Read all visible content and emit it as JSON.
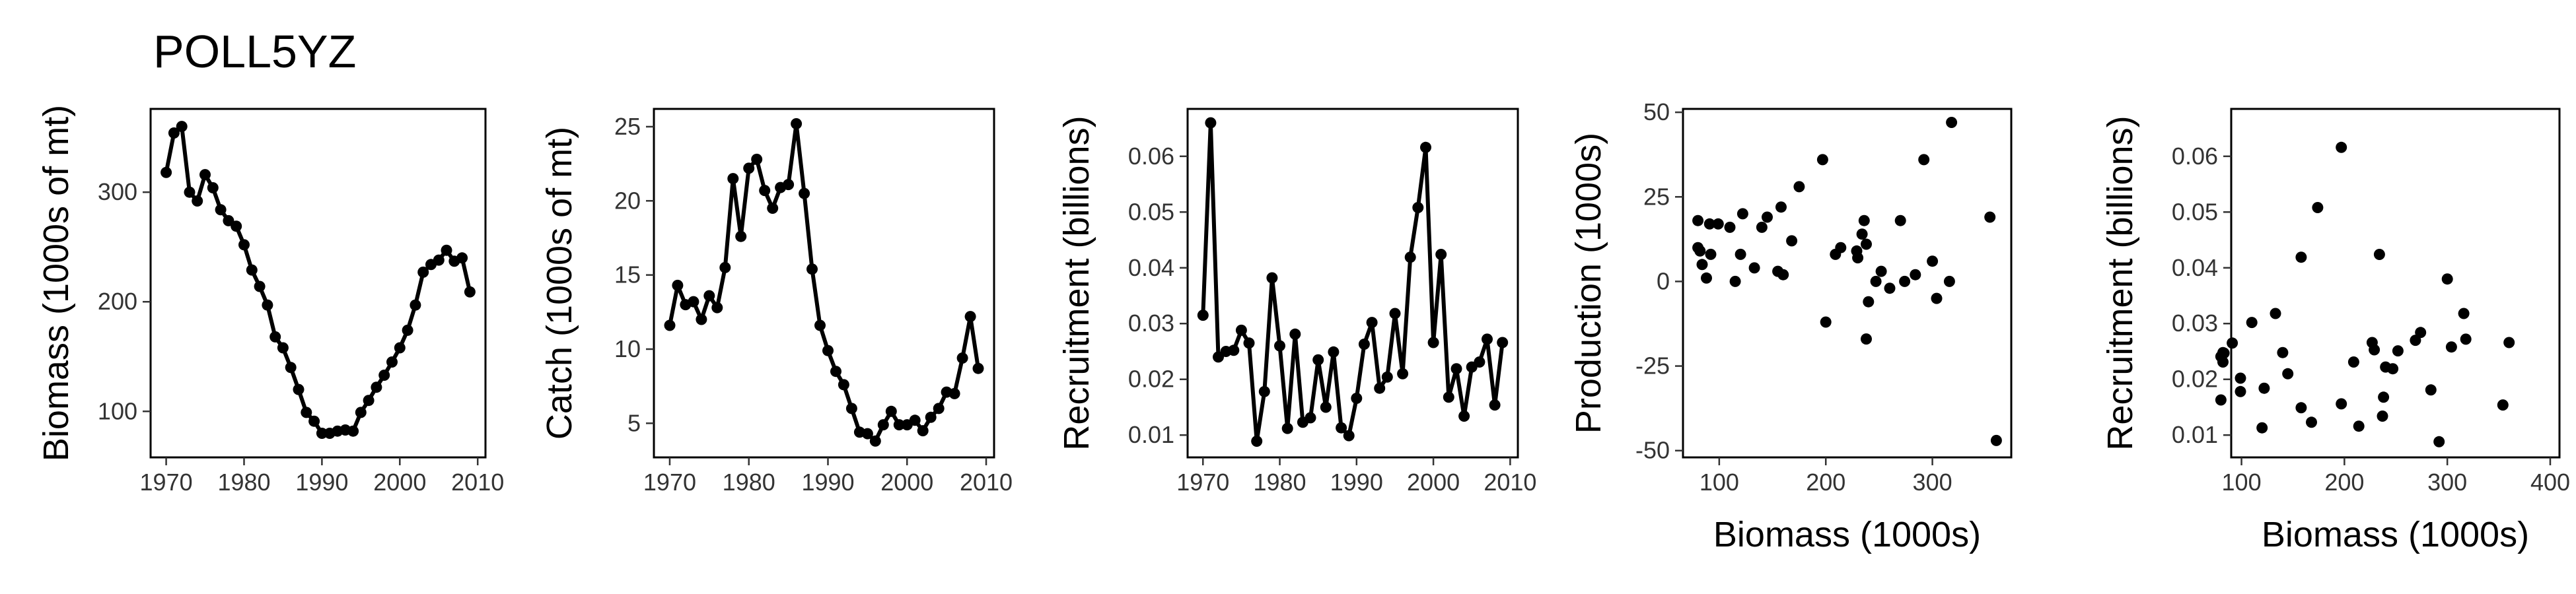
{
  "title": "POLL5YZ",
  "chart_data": [
    {
      "type": "line",
      "xlabel": "",
      "ylabel": "Biomass (1000s of mt)",
      "xlim": [
        1968,
        2011
      ],
      "ylim": [
        58,
        376
      ],
      "xticks": [
        1970,
        1980,
        1990,
        2000,
        2010
      ],
      "yticks": [
        100,
        200,
        300
      ],
      "x": [
        1970,
        1971,
        1972,
        1973,
        1974,
        1975,
        1976,
        1977,
        1978,
        1979,
        1980,
        1981,
        1982,
        1983,
        1984,
        1985,
        1986,
        1987,
        1988,
        1989,
        1990,
        1991,
        1992,
        1993,
        1994,
        1995,
        1996,
        1997,
        1998,
        1999,
        2000,
        2001,
        2002,
        2003,
        2004,
        2005,
        2006,
        2007,
        2008,
        2009
      ],
      "y": [
        318,
        354,
        360,
        300,
        292,
        316,
        304,
        284,
        274,
        269,
        252,
        229,
        214,
        197,
        168,
        158,
        140,
        120,
        99,
        91,
        80,
        80,
        82,
        83,
        82,
        99,
        110,
        122,
        133,
        145,
        158,
        174,
        197,
        227,
        234,
        238,
        247,
        237,
        240,
        209
      ]
    },
    {
      "type": "line",
      "xlabel": "",
      "ylabel": "Catch (1000s of mt)",
      "xlim": [
        1968,
        2011
      ],
      "ylim": [
        2.7,
        26.2
      ],
      "xticks": [
        1970,
        1980,
        1990,
        2000,
        2010
      ],
      "yticks": [
        5,
        10,
        15,
        20,
        25
      ],
      "x": [
        1970,
        1971,
        1972,
        1973,
        1974,
        1975,
        1976,
        1977,
        1978,
        1979,
        1980,
        1981,
        1982,
        1983,
        1984,
        1985,
        1986,
        1987,
        1988,
        1989,
        1990,
        1991,
        1992,
        1993,
        1994,
        1995,
        1996,
        1997,
        1998,
        1999,
        2000,
        2001,
        2002,
        2003,
        2004,
        2005,
        2006,
        2007,
        2008,
        2009
      ],
      "y": [
        11.6,
        14.3,
        13.0,
        13.2,
        12.0,
        13.6,
        12.8,
        15.5,
        21.5,
        17.6,
        22.2,
        22.8,
        20.7,
        19.5,
        20.9,
        21.1,
        25.2,
        20.5,
        15.4,
        11.6,
        9.9,
        8.5,
        7.6,
        6.0,
        4.4,
        4.3,
        3.8,
        4.9,
        5.8,
        4.9,
        4.9,
        5.2,
        4.5,
        5.4,
        6.0,
        7.1,
        7.0,
        9.4,
        12.2,
        8.7
      ]
    },
    {
      "type": "line",
      "xlabel": "",
      "ylabel": "Recruitment (billions)",
      "xlim": [
        1968,
        2011
      ],
      "ylim": [
        0.006,
        0.0685
      ],
      "xticks": [
        1970,
        1980,
        1990,
        2000,
        2010
      ],
      "yticks": [
        0.01,
        0.02,
        0.03,
        0.04,
        0.05,
        0.06
      ],
      "x": [
        1970,
        1971,
        1972,
        1973,
        1974,
        1975,
        1976,
        1977,
        1978,
        1979,
        1980,
        1981,
        1982,
        1983,
        1984,
        1985,
        1986,
        1987,
        1988,
        1989,
        1990,
        1991,
        1992,
        1993,
        1994,
        1995,
        1996,
        1997,
        1998,
        1999,
        2000,
        2001,
        2002,
        2003,
        2004,
        2005,
        2006,
        2007,
        2008,
        2009
      ],
      "y": [
        0.0315,
        0.066,
        0.024,
        0.025,
        0.0252,
        0.0288,
        0.0265,
        0.0089,
        0.0178,
        0.0382,
        0.026,
        0.0112,
        0.0281,
        0.0123,
        0.0131,
        0.0235,
        0.015,
        0.0249,
        0.0113,
        0.0099,
        0.0166,
        0.0263,
        0.0302,
        0.0184,
        0.0204,
        0.0318,
        0.021,
        0.0419,
        0.0508,
        0.0616,
        0.0266,
        0.0424,
        0.0168,
        0.0219,
        0.0134,
        0.0222,
        0.0231,
        0.0272,
        0.0154,
        0.0266
      ]
    },
    {
      "type": "scatter",
      "xlabel": "Biomass (1000s)",
      "ylabel": "Production (1000s)",
      "xlim": [
        66,
        374
      ],
      "ylim": [
        -52,
        51
      ],
      "xticks": [
        100,
        200,
        300
      ],
      "yticks": [
        -50,
        -25,
        0,
        25,
        50
      ],
      "x": [
        80,
        80,
        82,
        84,
        88,
        91,
        92,
        99,
        110,
        115,
        120,
        122,
        133,
        140,
        145,
        155,
        158,
        160,
        168,
        175,
        197,
        200,
        209,
        214,
        229,
        230,
        234,
        236,
        238,
        238,
        240,
        247,
        252,
        260,
        270,
        274,
        284,
        292,
        300,
        304,
        316,
        318,
        354,
        360
      ],
      "y": [
        18,
        10,
        9,
        5,
        1,
        17,
        8,
        17,
        16,
        0,
        8,
        20,
        4,
        16,
        19,
        3,
        22,
        2,
        12,
        28,
        36,
        -12,
        8,
        10,
        9,
        7,
        14,
        18,
        11,
        -17,
        -6,
        0,
        3,
        -2,
        18,
        0,
        2,
        36,
        6,
        -5,
        0,
        47,
        19,
        -47
      ]
    },
    {
      "type": "scatter",
      "xlabel": "Biomass (1000s)",
      "ylabel": "Recruitment (billions)",
      "xlim": [
        90,
        409
      ],
      "ylim": [
        0.006,
        0.0685
      ],
      "xticks": [
        100,
        200,
        300,
        400
      ],
      "yticks": [
        0.01,
        0.02,
        0.03,
        0.04,
        0.05,
        0.06
      ],
      "x": [
        99,
        110,
        122,
        133,
        145,
        158,
        174,
        197,
        227,
        234,
        238,
        247,
        237,
        240,
        209,
        318,
        354,
        360,
        300,
        292,
        316,
        304,
        284,
        274,
        269,
        252,
        229,
        214,
        197,
        168,
        158,
        140,
        120,
        99,
        91,
        80,
        80,
        82,
        83,
        82
      ],
      "y": [
        0.0202,
        0.0302,
        0.0184,
        0.0318,
        0.021,
        0.0419,
        0.0508,
        0.0616,
        0.0266,
        0.0424,
        0.0168,
        0.0219,
        0.0134,
        0.0222,
        0.0231,
        0.0272,
        0.0154,
        0.0266,
        0.038,
        0.0088,
        0.0318,
        0.0258,
        0.0181,
        0.0284,
        0.027,
        0.0251,
        0.0253,
        0.0116,
        0.0156,
        0.0123,
        0.0149,
        0.0248,
        0.0113,
        0.0178,
        0.0265,
        0.0163,
        0.0241,
        0.0248,
        0.0247,
        0.0231
      ]
    }
  ]
}
